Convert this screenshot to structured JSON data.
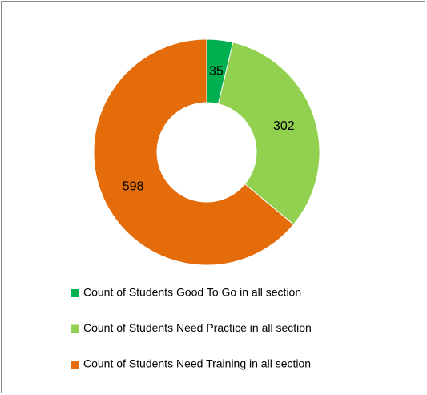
{
  "chart_data": {
    "type": "doughnut",
    "categories": [
      "Count of Students Good To Go in all section",
      "Count of Students Need Practice in all section",
      "Count of Students Need Training in all section"
    ],
    "values": [
      35,
      302,
      598
    ],
    "colors": [
      "#00b050",
      "#92d050",
      "#e46c0a"
    ],
    "legend": "bottom"
  }
}
